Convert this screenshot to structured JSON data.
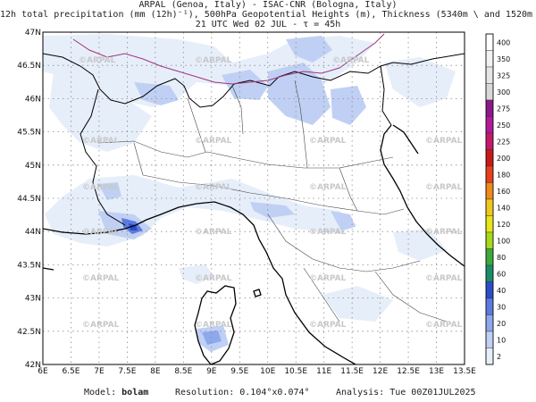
{
  "header": {
    "line1": "ARPAL (Genoa, Italy)  -  ISAC-CNR (Bologna, Italy)",
    "line2": "12h total precipitation (mm (12h)⁻¹), 500hPa Geopotential Heights (m), Thickness (5340m \\ and 1520m /)",
    "line3": "21 UTC Wed 02 JUL   -   τ = 45h"
  },
  "map": {
    "lon_ticks": [
      "6E",
      "6.5E",
      "7E",
      "7.5E",
      "8E",
      "8.5E",
      "9E",
      "9.5E",
      "10E",
      "10.5E",
      "11E",
      "11.5E",
      "12E",
      "12.5E",
      "13E",
      "13.5E"
    ],
    "lat_ticks": [
      "47N",
      "46.5N",
      "46N",
      "45.5N",
      "45N",
      "44.5N",
      "44N",
      "43.5N",
      "43N",
      "42.5N",
      "42N"
    ],
    "watermark": "ARPAL",
    "contour_color": "#a0357a",
    "coast_color": "#000000"
  },
  "colorbar": {
    "levels": [
      "400",
      "350",
      "325",
      "300",
      "275",
      "250",
      "225",
      "200",
      "180",
      "160",
      "140",
      "120",
      "100",
      "80",
      "60",
      "40",
      "30",
      "20",
      "10",
      "2"
    ],
    "colors": [
      "#ffffff",
      "#f2f2f2",
      "#e6e6e6",
      "#d9d9d9",
      "#8a1a8a",
      "#b21a9a",
      "#c41a6a",
      "#c81a1a",
      "#e8401a",
      "#f08a1a",
      "#f0c81a",
      "#e6e61a",
      "#a8d81a",
      "#3caa3c",
      "#1a8c6a",
      "#2a4ec8",
      "#5a7ae0",
      "#8ea8ec",
      "#c0d0f4",
      "#e6eefa"
    ]
  },
  "footer": {
    "model_label": "Model:",
    "model_value": "bolam",
    "res_label": "Resolution:",
    "res_value": "0.104°x0.074°",
    "ana_label": "Analysis:",
    "ana_value": "Tue 00Z01JUL2025"
  }
}
